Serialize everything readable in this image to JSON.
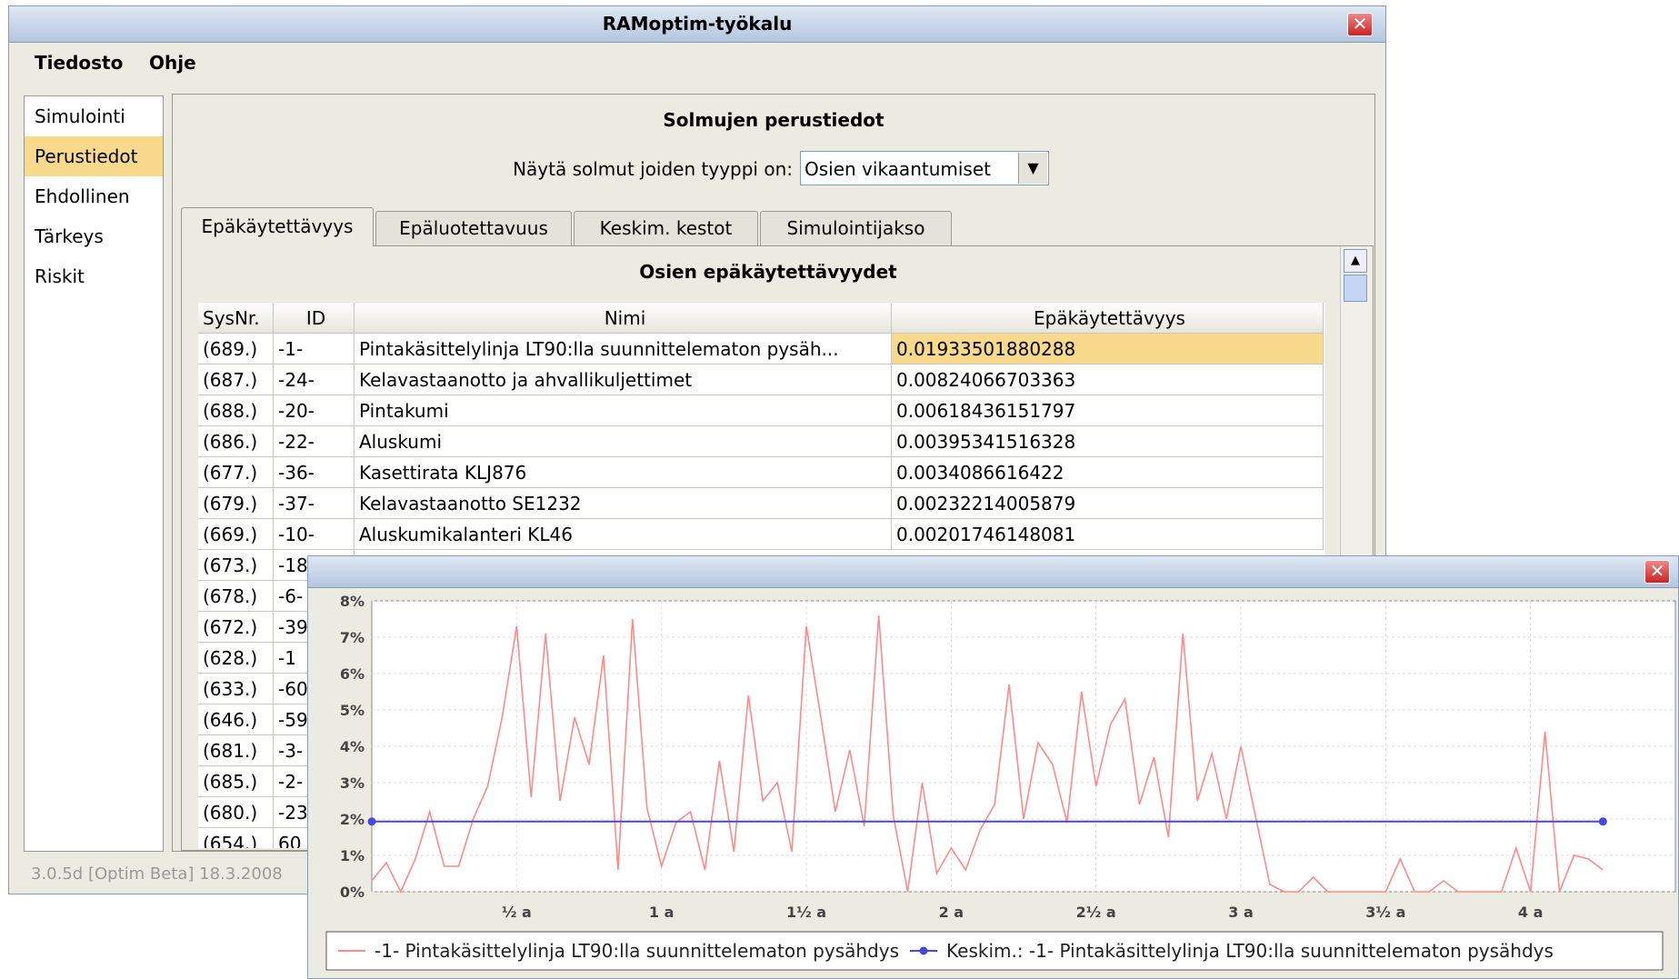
{
  "window": {
    "title": "RAMoptim-työkalu"
  },
  "menu": [
    "Tiedosto",
    "Ohje"
  ],
  "sidebar": {
    "items": [
      "Simulointi",
      "Perustiedot",
      "Ehdollinen",
      "Tärkeys",
      "Riskit"
    ],
    "selected": "Perustiedot"
  },
  "panel": {
    "title": "Solmujen perustiedot",
    "filter_label": "Näytä solmut joiden tyyppi on:",
    "filter_value": "Osien vikaantumiset"
  },
  "tabs": {
    "items": [
      "Epäkäytettävyys",
      "Epäluotettavuus",
      "Keskim. kestot",
      "Simulointijakso"
    ],
    "selected": "Epäkäytettävyys"
  },
  "table": {
    "title": "Osien epäkäytettävyydet",
    "columns": [
      "SysNr.",
      "ID",
      "Nimi",
      "Epäkäytettävyys"
    ],
    "rows": [
      [
        "(689.)",
        "-1-",
        "Pintakäsittelylinja LT90:lla suunnittelematon pysäh...",
        "0.01933501880288"
      ],
      [
        "(687.)",
        "-24-",
        "Kelavastaanotto ja ahvallikuljettimet",
        "0.00824066703363"
      ],
      [
        "(688.)",
        "-20-",
        "Pintakumi",
        "0.00618436151797"
      ],
      [
        "(686.)",
        "-22-",
        "Aluskumi",
        "0.00395341516328"
      ],
      [
        "(677.)",
        "-36-",
        "Kasettirata KLJ876",
        "0.0034086616422"
      ],
      [
        "(679.)",
        "-37-",
        "Kelavastaanotto SE1232",
        "0.00232214005879"
      ],
      [
        "(669.)",
        "-10-",
        "Aluskumikalanteri KL46",
        "0.00201746148081"
      ],
      [
        "(673.)",
        "-18"
      ],
      [
        "(678.)",
        "-6-"
      ],
      [
        "(672.)",
        "-39"
      ],
      [
        "(628.)",
        "-1"
      ],
      [
        "(633.)",
        "-60"
      ],
      [
        "(646.)",
        "-59"
      ],
      [
        "(681.)",
        "-3-"
      ],
      [
        "(685.)",
        "-2-"
      ],
      [
        "(680.)",
        "-23"
      ],
      [
        "(654.)",
        "60"
      ]
    ]
  },
  "status": "3.0.5d  [Optim Beta]  18.3.2008",
  "chart_data": {
    "type": "line",
    "xlim": [
      0,
      4.5
    ],
    "ylim": [
      0,
      8
    ],
    "xticks": [
      {
        "value": 0.5,
        "label": "½ a"
      },
      {
        "value": 1,
        "label": "1 a"
      },
      {
        "value": 1.5,
        "label": "1½ a"
      },
      {
        "value": 2,
        "label": "2 a"
      },
      {
        "value": 2.5,
        "label": "2½ a"
      },
      {
        "value": 3,
        "label": "3 a"
      },
      {
        "value": 3.5,
        "label": "3½ a"
      },
      {
        "value": 4,
        "label": "4 a"
      }
    ],
    "yticks": [
      {
        "value": 0,
        "label": "0%"
      },
      {
        "value": 1,
        "label": "1%"
      },
      {
        "value": 2,
        "label": "2%"
      },
      {
        "value": 3,
        "label": "3%"
      },
      {
        "value": 4,
        "label": "4%"
      },
      {
        "value": 5,
        "label": "5%"
      },
      {
        "value": 6,
        "label": "6%"
      },
      {
        "value": 7,
        "label": "7%"
      },
      {
        "value": 8,
        "label": "8%"
      }
    ],
    "grid": true,
    "series": [
      {
        "name": "-1- Pintakäsittelylinja LT90:lla suunnittelematon pysähdys",
        "color": "#ff8a8a",
        "x": [
          0,
          0.05,
          0.1,
          0.15,
          0.2,
          0.25,
          0.3,
          0.35,
          0.4,
          0.45,
          0.5,
          0.55,
          0.6,
          0.65,
          0.7,
          0.75,
          0.8,
          0.85,
          0.9,
          0.95,
          1,
          1.05,
          1.1,
          1.15,
          1.2,
          1.25,
          1.3,
          1.35,
          1.4,
          1.45,
          1.5,
          1.55,
          1.6,
          1.65,
          1.7,
          1.75,
          1.8,
          1.85,
          1.9,
          1.95,
          2,
          2.05,
          2.1,
          2.15,
          2.2,
          2.25,
          2.3,
          2.35,
          2.4,
          2.45,
          2.5,
          2.55,
          2.6,
          2.65,
          2.7,
          2.75,
          2.8,
          2.85,
          2.9,
          2.95,
          3,
          3.05,
          3.1,
          3.15,
          3.2,
          3.25,
          3.3,
          3.35,
          3.4,
          3.45,
          3.5,
          3.55,
          3.6,
          3.65,
          3.7,
          3.75,
          3.8,
          3.85,
          3.9,
          3.95,
          4,
          4.05,
          4.1,
          4.15,
          4.2,
          4.25
        ],
        "values": [
          0.3,
          0.8,
          0,
          0.9,
          2.2,
          0.7,
          0.7,
          2,
          2.9,
          4.8,
          7.3,
          2.6,
          7.1,
          2.5,
          4.8,
          3.5,
          6.5,
          0.6,
          7.5,
          2.3,
          0.7,
          1.9,
          2.2,
          0.6,
          3.6,
          1.1,
          5.4,
          2.5,
          3,
          1.1,
          7.3,
          4.8,
          2.2,
          3.9,
          1.8,
          7.6,
          2.1,
          0,
          3,
          0.5,
          1.2,
          0.6,
          1.7,
          2.4,
          5.7,
          2,
          4.1,
          3.5,
          1.9,
          5.5,
          2.9,
          4.6,
          5.3,
          2.4,
          3.7,
          1.5,
          7.1,
          2.5,
          3.8,
          2,
          4,
          2.1,
          0.2,
          0,
          0,
          0.4,
          0,
          0,
          0,
          0,
          0,
          0.9,
          0,
          0,
          0.3,
          0,
          0,
          0,
          0,
          1.2,
          0,
          4.4,
          0,
          1,
          0.9,
          0.6
        ]
      },
      {
        "name": "Keskim.: -1- Pintakäsittelylinja LT90:lla suunnittelematon pysähdys",
        "color": "#4848e0",
        "x": [
          0,
          4.25
        ],
        "values": [
          1.93,
          1.93
        ]
      }
    ]
  }
}
